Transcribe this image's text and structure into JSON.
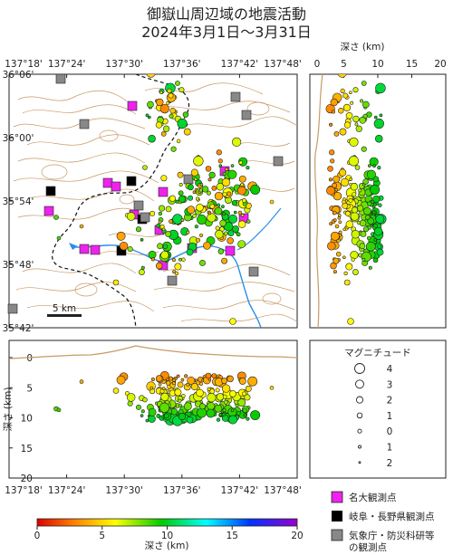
{
  "title": {
    "line1": "御嶽山周辺域の地震活動",
    "line2": "2024年3月1日～3月31日"
  },
  "map": {
    "lon_ticks": [
      "137°18'",
      "137°24'",
      "137°30'",
      "137°36'",
      "137°42'",
      "137°48'"
    ],
    "lat_ticks": [
      "36°06'",
      "36°00'",
      "35°54'",
      "35°48'",
      "35°42'"
    ],
    "scale_label": "5 km"
  },
  "depth_side": {
    "label": "深さ (km)",
    "ticks": [
      "0",
      "5",
      "10",
      "15",
      "20"
    ]
  },
  "depth_bottom": {
    "label": "深さ (km)",
    "ticks": [
      "0",
      "5",
      "10",
      "15",
      "20"
    ],
    "lon_ticks": [
      "137°18'",
      "137°24'",
      "137°30'",
      "137°36'",
      "137°42'",
      "137°48'"
    ]
  },
  "magnitude_legend": {
    "title": "マグニチュード",
    "values": [
      "4",
      "3",
      "2",
      "1",
      "0",
      "1",
      "2"
    ]
  },
  "station_legend": {
    "nagoya": "名大観測点",
    "gifu_nagano": "岐阜・長野県観測点",
    "jma_line1": "気象庁・防災科研等",
    "jma_line2": "の観測点",
    "colors": {
      "nagoya": "#ee22ee",
      "gifu_nagano": "#000000",
      "jma": "#888888"
    }
  },
  "colorbar": {
    "label": "深さ (km)",
    "ticks": [
      "0",
      "5",
      "10",
      "15",
      "20"
    ],
    "colors": [
      "#dd0000",
      "#ff8800",
      "#ffff00",
      "#00cc00",
      "#00ffff",
      "#0033ff",
      "#9900cc"
    ]
  }
}
